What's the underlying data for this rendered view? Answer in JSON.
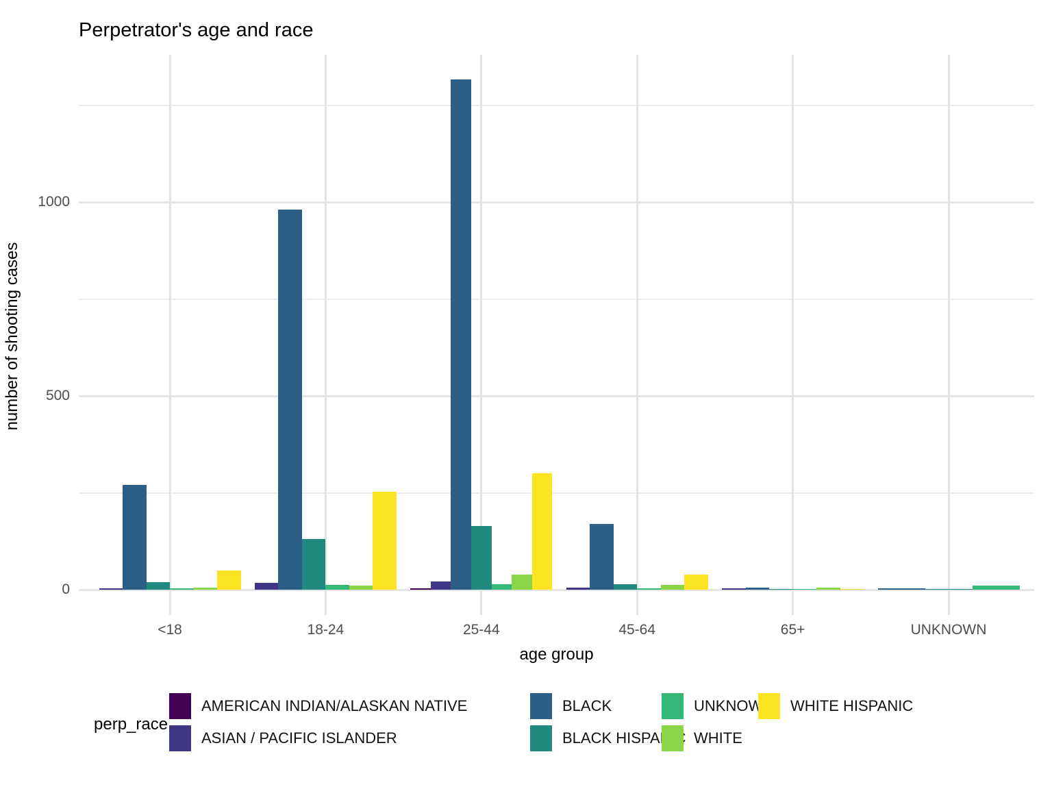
{
  "title": "Perpetrator's age and race",
  "axes": {
    "x": {
      "label": "age group",
      "categories": [
        "<18",
        "18-24",
        "25-44",
        "45-64",
        "65+",
        "UNKNOWN"
      ]
    },
    "y": {
      "label": "number of shooting cases",
      "ticks": [
        0,
        500,
        1000
      ],
      "minor_ticks": [
        250,
        750,
        1250
      ]
    }
  },
  "legend": {
    "title": "perp_race"
  },
  "chart_data": {
    "type": "bar",
    "grouping": "dodge",
    "title": "Perpetrator's age and race",
    "xlabel": "age group",
    "ylabel": "number of shooting cases",
    "categories": [
      "<18",
      "18-24",
      "25-44",
      "45-64",
      "65+",
      "UNKNOWN"
    ],
    "ylim": [
      0,
      1380
    ],
    "grid": true,
    "legend_position": "bottom",
    "series": [
      {
        "name": "AMERICAN INDIAN/ALASKAN NATIVE",
        "color": "#440154",
        "values": [
          null,
          null,
          3,
          null,
          null,
          null
        ]
      },
      {
        "name": "ASIAN / PACIFIC ISLANDER",
        "color": "#3f3687",
        "values": [
          4,
          17,
          22,
          6,
          4,
          null
        ]
      },
      {
        "name": "BLACK",
        "color": "#2c5f87",
        "values": [
          270,
          980,
          1317,
          170,
          5,
          4
        ]
      },
      {
        "name": "BLACK HISPANIC",
        "color": "#22897f",
        "values": [
          20,
          130,
          165,
          14,
          2,
          2
        ]
      },
      {
        "name": "UNKNOWN",
        "color": "#35b779",
        "values": [
          3,
          12,
          15,
          4,
          2,
          10
        ]
      },
      {
        "name": "WHITE",
        "color": "#8bd646",
        "values": [
          5,
          10,
          38,
          12,
          5,
          null
        ]
      },
      {
        "name": "WHITE HISPANIC",
        "color": "#fce422",
        "values": [
          50,
          252,
          300,
          38,
          2,
          null
        ]
      }
    ]
  }
}
